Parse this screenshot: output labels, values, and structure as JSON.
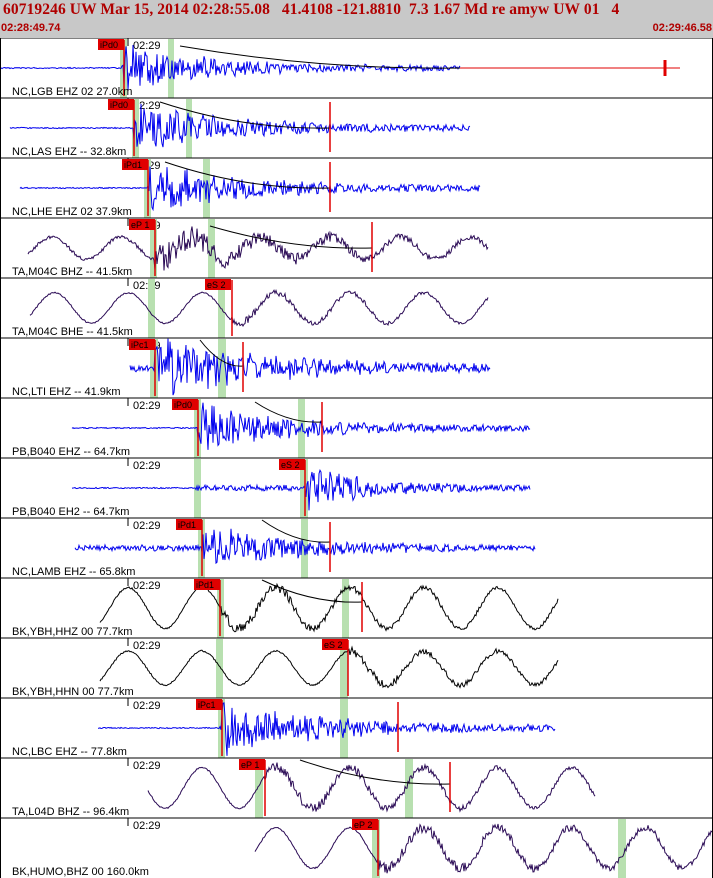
{
  "header": {
    "title": "60719246 UW Mar 15, 2014 02:28:55.08   41.4108 -121.8810  7.3 1.67 Md re amyw UW 01   4",
    "start_time": "02:28:49.74",
    "end_time": "02:29:46.58"
  },
  "colors": {
    "header_bg": "#c8c8c8",
    "header_text": "#b00000",
    "trace_blue": "#0000ee",
    "trace_black": "#000000",
    "trace_purple": "#2a0a55",
    "pick_red": "#e00000",
    "window_green": "#b8e0b0",
    "curve_black": "#000000"
  },
  "traces": [
    {
      "label": "NC,LGB EHZ 02 27.0km",
      "time": "02:29",
      "pick": "iPd0",
      "color": "blue"
    },
    {
      "label": "NC,LAS EHZ -- 32.8km",
      "time": "02:29",
      "pick": "iPd0",
      "color": "blue"
    },
    {
      "label": "NC,LHE EHZ 02 37.9km",
      "time": "02:29",
      "pick": "iPd1",
      "color": "blue"
    },
    {
      "label": "TA,M04C BHZ -- 41.5km",
      "time": "02:29",
      "pick": "eP 1",
      "color": "purple"
    },
    {
      "label": "TA,M04C BHE -- 41.5km",
      "time": "02:29",
      "pick": "eS 2",
      "color": "purple"
    },
    {
      "label": "NC,LTI EHZ -- 41.9km",
      "time": "02:29",
      "pick": "iPc1",
      "color": "blue"
    },
    {
      "label": "PB,B040 EHZ -- 64.7km",
      "time": "02:29",
      "pick": "iPd0",
      "color": "blue"
    },
    {
      "label": "PB,B040 EH2 -- 64.7km",
      "time": "02:29",
      "pick": "eS 2",
      "color": "blue"
    },
    {
      "label": "NC,LAMB EHZ -- 65.8km",
      "time": "02:29",
      "pick": "iPd1",
      "color": "blue"
    },
    {
      "label": "BK,YBH,HHZ 00 77.7km",
      "time": "02:29",
      "pick": "iPd1",
      "color": "black"
    },
    {
      "label": "BK,YBH,HHN 00 77.7km",
      "time": "02:29",
      "pick": "eS 2",
      "color": "black"
    },
    {
      "label": "NC,LBC EHZ -- 77.8km",
      "time": "02:29",
      "pick": "iPc1",
      "color": "blue"
    },
    {
      "label": "TA,L04D BHZ -- 96.4km",
      "time": "02:29",
      "pick": "eP 1",
      "color": "purple"
    },
    {
      "label": "BK,HUMO,BHZ 00 160.0km",
      "time": "02:29",
      "pick": "eP 2",
      "color": "purple"
    }
  ]
}
